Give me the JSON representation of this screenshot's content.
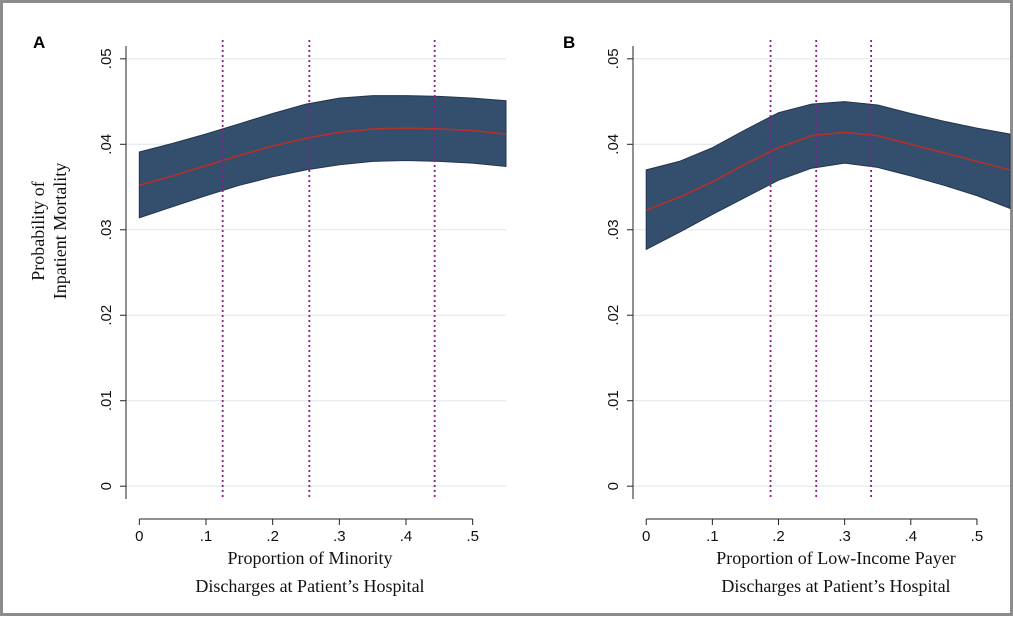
{
  "colors": {
    "band_fill": "#344e6d",
    "band_edge": "#22354d",
    "curve": "#b5302c",
    "marker_line": "#8a1f8a",
    "grid": "#dde6ec",
    "axis": "#222222",
    "frame": "#8c8c8c"
  },
  "y_axis": {
    "title_line1": "Probability of",
    "title_line2": "Inpatient Mortality"
  },
  "chart_data": [
    {
      "type": "area",
      "panel_label": "A",
      "xlabel_line1": "Proportion of Minority",
      "xlabel_line2": "Discharges at Patient’s Hospital",
      "xlim": [
        -0.02,
        0.55
      ],
      "ylim": [
        -0.0015,
        0.0515
      ],
      "x_ticks": [
        0,
        0.1,
        0.2,
        0.3,
        0.4,
        0.5
      ],
      "x_tick_labels": [
        "0",
        ".1",
        ".2",
        ".3",
        ".4",
        ".5"
      ],
      "y_ticks": [
        0,
        0.01,
        0.02,
        0.03,
        0.04,
        0.05
      ],
      "y_tick_labels": [
        "0",
        ".01",
        ".02",
        ".03",
        ".04",
        ".05"
      ],
      "grid": true,
      "vertical_markers": [
        0.125,
        0.255,
        0.443
      ],
      "series": [
        {
          "x": [
            0,
            0.05,
            0.1,
            0.15,
            0.2,
            0.25,
            0.3,
            0.35,
            0.4,
            0.45,
            0.5,
            0.55
          ],
          "estimate": [
            0.0352,
            0.0363,
            0.0375,
            0.0387,
            0.0398,
            0.0407,
            0.0414,
            0.0418,
            0.0419,
            0.0418,
            0.0416,
            0.0412
          ],
          "upper": [
            0.0391,
            0.0401,
            0.0412,
            0.0424,
            0.0436,
            0.0447,
            0.0454,
            0.0457,
            0.0457,
            0.0456,
            0.0454,
            0.0451
          ],
          "lower": [
            0.0314,
            0.0327,
            0.034,
            0.0352,
            0.0362,
            0.037,
            0.0376,
            0.038,
            0.0381,
            0.038,
            0.0378,
            0.0374
          ]
        }
      ]
    },
    {
      "type": "area",
      "panel_label": "B",
      "xlabel_line1": "Proportion of Low-Income Payer",
      "xlabel_line2": "Discharges at Patient’s Hospital",
      "xlim": [
        -0.02,
        0.55
      ],
      "ylim": [
        -0.0015,
        0.0515
      ],
      "x_ticks": [
        0,
        0.1,
        0.2,
        0.3,
        0.4,
        0.5
      ],
      "x_tick_labels": [
        "0",
        ".1",
        ".2",
        ".3",
        ".4",
        ".5"
      ],
      "y_ticks": [
        0,
        0.01,
        0.02,
        0.03,
        0.04,
        0.05
      ],
      "y_tick_labels": [
        "0",
        ".01",
        ".02",
        ".03",
        ".04",
        ".05"
      ],
      "grid": true,
      "vertical_markers": [
        0.188,
        0.257,
        0.34
      ],
      "series": [
        {
          "x": [
            0,
            0.05,
            0.1,
            0.15,
            0.2,
            0.25,
            0.3,
            0.35,
            0.4,
            0.45,
            0.5,
            0.55
          ],
          "estimate": [
            0.0323,
            0.0338,
            0.0356,
            0.0377,
            0.0396,
            0.041,
            0.0414,
            0.041,
            0.04,
            0.039,
            0.038,
            0.037
          ],
          "upper": [
            0.037,
            0.038,
            0.0396,
            0.0417,
            0.0437,
            0.0447,
            0.045,
            0.0446,
            0.0436,
            0.0427,
            0.0419,
            0.0412
          ],
          "lower": [
            0.0277,
            0.0297,
            0.0318,
            0.0338,
            0.0358,
            0.0372,
            0.0378,
            0.0373,
            0.0363,
            0.0352,
            0.034,
            0.0325
          ]
        }
      ]
    }
  ]
}
